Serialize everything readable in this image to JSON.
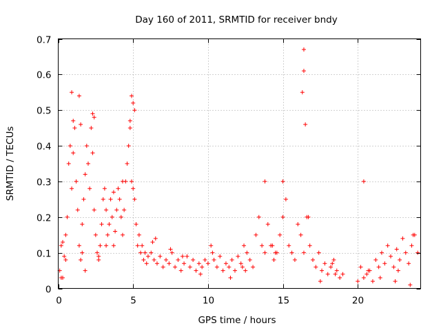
{
  "chart_data": {
    "type": "scatter",
    "title": "Day 160 of 2011, SRMTID for receiver bndy",
    "xlabel": "GPS time / hours",
    "ylabel": "SRMTID / TECUs",
    "xlim": [
      0,
      24.2
    ],
    "ylim": [
      0,
      0.7
    ],
    "x_ticks": [
      0,
      5,
      10,
      15,
      20
    ],
    "y_ticks": [
      0,
      0.1,
      0.2,
      0.3,
      0.4,
      0.5,
      0.6,
      0.7
    ],
    "x_tick_labels": [
      "0",
      "5",
      "10",
      "15",
      "20"
    ],
    "y_tick_labels": [
      "0",
      "0.1",
      "0.2",
      "0.3",
      "0.4",
      "0.5",
      "0.6",
      "0.7"
    ],
    "grid": true,
    "marker": "+",
    "color": "#ff0000",
    "series": [
      {
        "name": "SRMTID",
        "x": [
          0.1,
          0.2,
          0.3,
          0.4,
          0.5,
          0.6,
          0.7,
          0.8,
          0.9,
          1.0,
          1.1,
          1.2,
          1.3,
          1.4,
          1.5,
          1.6,
          1.7,
          1.8,
          1.9,
          2.0,
          2.1,
          2.2,
          2.3,
          2.4,
          2.5,
          2.6,
          2.7,
          2.8,
          2.9,
          3.0,
          3.1,
          3.2,
          3.3,
          3.4,
          3.5,
          3.6,
          3.7,
          3.8,
          3.9,
          4.0,
          4.1,
          4.2,
          4.3,
          4.4,
          4.5,
          4.6,
          4.7,
          4.8,
          4.9,
          5.0,
          5.1,
          5.2,
          5.3,
          5.4,
          5.5,
          5.6,
          5.7,
          5.8,
          5.9,
          6.0,
          6.2,
          6.4,
          6.6,
          6.8,
          7.0,
          7.2,
          7.4,
          7.6,
          7.8,
          8.0,
          8.2,
          8.4,
          8.6,
          8.8,
          9.0,
          9.2,
          9.4,
          9.6,
          9.8,
          10.0,
          10.2,
          10.4,
          10.6,
          10.8,
          11.0,
          11.2,
          11.4,
          11.6,
          11.8,
          12.0,
          12.2,
          12.4,
          12.6,
          12.8,
          13.0,
          13.2,
          13.4,
          13.6,
          13.8,
          14.0,
          14.2,
          14.4,
          14.6,
          14.8,
          15.0,
          15.2,
          15.4,
          15.6,
          15.8,
          16.0,
          16.2,
          16.4,
          16.6,
          16.8,
          17.0,
          17.2,
          17.4,
          17.6,
          17.8,
          18.0,
          18.2,
          18.4,
          18.6,
          18.8,
          19.0,
          20.0,
          20.2,
          20.4,
          20.6,
          20.8,
          21.0,
          21.2,
          21.4,
          21.6,
          21.8,
          22.0,
          22.2,
          22.4,
          22.6,
          22.8,
          23.0,
          23.2,
          23.4,
          23.6,
          23.8,
          24.0,
          0.9,
          1.4,
          2.3,
          4.9,
          5.0,
          16.4,
          16.4,
          16.3,
          1.0,
          1.5,
          2.4,
          4.8,
          5.1,
          13.8,
          15.0,
          16.5,
          20.4,
          0.2,
          0.5,
          1.8,
          3.2,
          6.5,
          7.5,
          9.5,
          11.5,
          12.5,
          14.5,
          17.5,
          18.5,
          21.5,
          22.5,
          23.5,
          0.3,
          1.6,
          2.7,
          3.7,
          4.3,
          6.3,
          8.3,
          10.3,
          12.3,
          14.3,
          16.7,
          18.3,
          20.7,
          22.7,
          23.7
        ],
        "y": [
          0.05,
          0.12,
          0.03,
          0.09,
          0.15,
          0.2,
          0.35,
          0.4,
          0.28,
          0.38,
          0.45,
          0.3,
          0.22,
          0.12,
          0.08,
          0.18,
          0.25,
          0.32,
          0.4,
          0.35,
          0.28,
          0.45,
          0.38,
          0.22,
          0.15,
          0.1,
          0.08,
          0.12,
          0.18,
          0.25,
          0.28,
          0.22,
          0.15,
          0.18,
          0.25,
          0.2,
          0.12,
          0.16,
          0.22,
          0.28,
          0.25,
          0.2,
          0.15,
          0.22,
          0.3,
          0.35,
          0.4,
          0.45,
          0.3,
          0.28,
          0.25,
          0.18,
          0.12,
          0.15,
          0.1,
          0.12,
          0.08,
          0.1,
          0.07,
          0.09,
          0.1,
          0.08,
          0.07,
          0.09,
          0.06,
          0.08,
          0.07,
          0.1,
          0.06,
          0.08,
          0.05,
          0.07,
          0.09,
          0.06,
          0.08,
          0.05,
          0.07,
          0.06,
          0.08,
          0.07,
          0.12,
          0.08,
          0.06,
          0.09,
          0.05,
          0.07,
          0.06,
          0.08,
          0.05,
          0.09,
          0.07,
          0.12,
          0.1,
          0.08,
          0.06,
          0.15,
          0.2,
          0.12,
          0.1,
          0.18,
          0.12,
          0.08,
          0.1,
          0.15,
          0.2,
          0.25,
          0.12,
          0.1,
          0.08,
          0.18,
          0.15,
          0.1,
          0.2,
          0.12,
          0.08,
          0.06,
          0.1,
          0.05,
          0.07,
          0.04,
          0.06,
          0.08,
          0.05,
          0.03,
          0.04,
          0.02,
          0.06,
          0.03,
          0.04,
          0.05,
          0.02,
          0.08,
          0.06,
          0.1,
          0.07,
          0.12,
          0.09,
          0.06,
          0.11,
          0.08,
          0.14,
          0.1,
          0.07,
          0.12,
          0.15,
          0.1,
          0.55,
          0.54,
          0.49,
          0.54,
          0.52,
          0.67,
          0.61,
          0.55,
          0.47,
          0.46,
          0.48,
          0.47,
          0.5,
          0.3,
          0.3,
          0.46,
          0.3,
          0.03,
          0.08,
          0.05,
          0.12,
          0.14,
          0.11,
          0.04,
          0.03,
          0.05,
          0.1,
          0.02,
          0.04,
          0.03,
          0.02,
          0.01,
          0.13,
          0.1,
          0.09,
          0.27,
          0.3,
          0.13,
          0.09,
          0.1,
          0.06,
          0.12,
          0.2,
          0.07,
          0.05,
          0.05,
          0.15
        ]
      }
    ]
  }
}
